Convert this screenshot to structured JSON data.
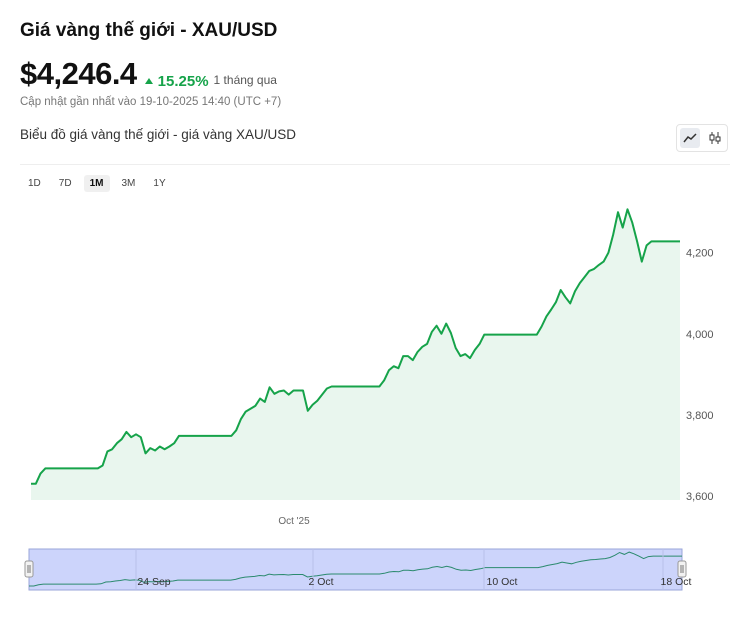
{
  "header": {
    "title": "Giá vàng thế giới - XAU/USD",
    "price": "$4,246.4",
    "change": "15.25%",
    "period": "1 tháng qua",
    "updated": "Cập nhật gần nhất vào 19-10-2025 14:40 (UTC +7)"
  },
  "chart_section": {
    "title": "Biểu đồ giá vàng thế giới - giá vàng XAU/USD",
    "ranges": [
      "1D",
      "7D",
      "1M",
      "3M",
      "1Y"
    ],
    "active_range": "1M",
    "view_icons": [
      "line-chart-icon",
      "candlestick-icon"
    ]
  },
  "colors": {
    "line": "#16a34a",
    "area": "#e9f6ee",
    "up": "#16a34a",
    "navigator_bg": "#ccd4fb",
    "navigator_line": "#2b8a6e"
  },
  "chart_data": {
    "type": "area",
    "title": "",
    "xlabel": "",
    "ylabel": "",
    "ylim": [
      3590,
      4330
    ],
    "y_ticks": [
      3600,
      3800,
      4000,
      4200
    ],
    "y_tick_labels": [
      "3,600",
      "3,800",
      "4,000",
      "4,200"
    ],
    "x_tick_labels": [
      "Oct '25"
    ],
    "navigator_labels": [
      "24 Sep",
      "2 Oct",
      "10 Oct",
      "18 Oct"
    ],
    "grid": false,
    "series": [
      {
        "values": [
          3630,
          3630,
          3655,
          3668,
          3668,
          3668,
          3668,
          3668,
          3668,
          3668,
          3668,
          3668,
          3668,
          3668,
          3668,
          3675,
          3710,
          3715,
          3730,
          3740,
          3758,
          3745,
          3752,
          3745,
          3705,
          3718,
          3712,
          3722,
          3715,
          3722,
          3730,
          3748,
          3748,
          3748,
          3748,
          3748,
          3748,
          3748,
          3748,
          3748,
          3748,
          3748,
          3748,
          3762,
          3790,
          3808,
          3815,
          3822,
          3840,
          3832,
          3868,
          3852,
          3858,
          3860,
          3850,
          3860,
          3860,
          3860,
          3810,
          3825,
          3835,
          3850,
          3865,
          3870,
          3870,
          3870,
          3870,
          3870,
          3870,
          3870,
          3870,
          3870,
          3870,
          3870,
          3885,
          3910,
          3920,
          3915,
          3945,
          3945,
          3935,
          3955,
          3968,
          3975,
          4005,
          4020,
          4000,
          4025,
          4002,
          3965,
          3945,
          3950,
          3940,
          3960,
          3975,
          3998,
          3998,
          3998,
          3998,
          3998,
          3998,
          3998,
          3998,
          3998,
          3998,
          3998,
          3998,
          4018,
          4043,
          4060,
          4078,
          4108,
          4090,
          4075,
          4105,
          4125,
          4140,
          4155,
          4160,
          4170,
          4178,
          4200,
          4245,
          4300,
          4262,
          4307,
          4274,
          4228,
          4178,
          4218,
          4228,
          4228,
          4228,
          4228,
          4228,
          4228,
          4228
        ]
      }
    ]
  }
}
